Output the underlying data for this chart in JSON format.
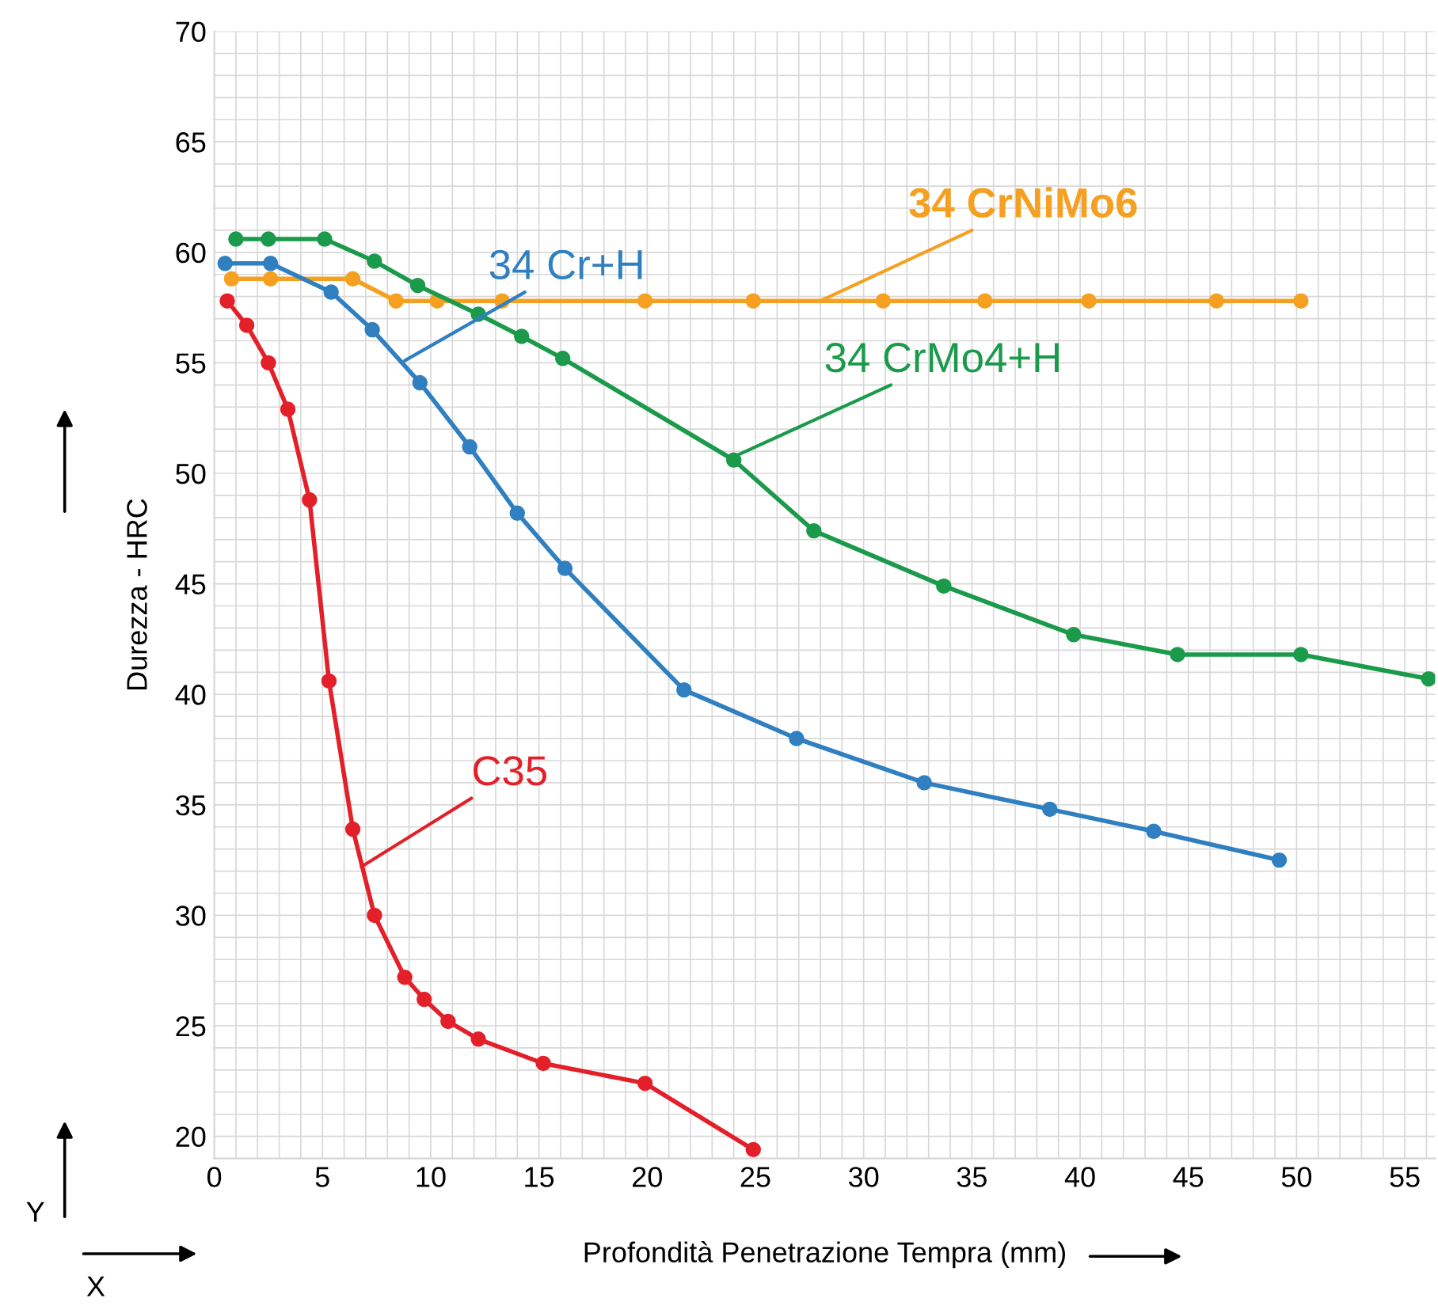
{
  "chart_data": {
    "type": "line",
    "xlabel": "Profondità Penetrazione Tempra (mm)",
    "ylabel": "Durezza - HRC",
    "xlim": [
      0,
      56.4
    ],
    "ylim": [
      19,
      70
    ],
    "xticks": [
      0,
      5,
      10,
      15,
      20,
      25,
      30,
      35,
      40,
      45,
      50,
      55
    ],
    "yticks": [
      20,
      25,
      30,
      35,
      40,
      45,
      50,
      55,
      60,
      65,
      70
    ],
    "grid": true,
    "marker": "circle",
    "line_style": "solid",
    "series": [
      {
        "color": "#f5a021",
        "x": [
          0.8,
          2.6,
          6.4,
          8.4,
          10.3,
          13.3,
          19.9,
          24.9,
          30.9,
          35.6,
          40.4,
          46.3,
          50.2
        ],
        "values": [
          58.8,
          58.8,
          58.8,
          57.8,
          57.8,
          57.8,
          57.8,
          57.8,
          57.8,
          57.8,
          57.8,
          57.8,
          57.8
        ]
      },
      {
        "color": "#2f7fc1",
        "x": [
          0.5,
          2.6,
          5.4,
          7.3,
          9.5,
          11.8,
          14.0,
          16.2,
          21.7,
          26.9,
          32.8,
          38.6,
          43.4,
          49.2
        ],
        "values": [
          59.5,
          59.5,
          58.2,
          56.5,
          54.1,
          51.2,
          48.2,
          45.7,
          40.2,
          38.0,
          36.0,
          34.8,
          33.8,
          32.5
        ]
      },
      {
        "color": "#1a9a4a",
        "x": [
          1.0,
          2.5,
          5.1,
          7.4,
          9.4,
          12.2,
          14.2,
          16.1,
          24.0,
          27.7,
          33.7,
          39.7,
          44.5,
          50.2,
          56.1
        ],
        "values": [
          60.6,
          60.6,
          60.6,
          59.6,
          58.5,
          57.2,
          56.2,
          55.2,
          50.6,
          47.4,
          44.9,
          42.7,
          41.8,
          41.8,
          40.7
        ]
      },
      {
        "color": "#e3202a",
        "x": [
          0.6,
          1.5,
          2.5,
          3.4,
          4.4,
          5.3,
          6.4,
          7.4,
          8.8,
          9.7,
          10.8,
          12.2,
          15.2,
          19.9,
          24.9
        ],
        "values": [
          57.8,
          56.7,
          55.0,
          52.9,
          48.8,
          40.6,
          33.9,
          30.0,
          27.2,
          26.2,
          25.2,
          24.4,
          23.3,
          22.4,
          19.4
        ]
      }
    ],
    "annotations": [
      {
        "text": "34 CrNiMo6",
        "x": 28.0,
        "y": 57.8
      },
      {
        "text": "34 Cr+H",
        "x": 8.8,
        "y": 55.1
      },
      {
        "text": "34 CrMo4+H",
        "x": 23.9,
        "y": 50.7
      },
      {
        "text": "C35",
        "x": 6.8,
        "y": 32.2
      },
      "Y",
      "X"
    ]
  }
}
